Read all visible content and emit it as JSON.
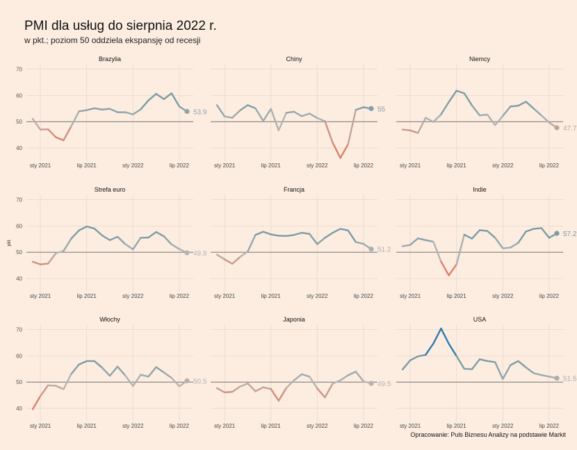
{
  "title": "PMI dla usług do sierpnia 2022 r.",
  "subtitle": "w pkt.; poziom 50 oddziela ekspansję od recesji",
  "source": "Opracowanie: Puls Biznesu Analizy na podstawie Markit",
  "chart_data": {
    "type": "line",
    "ylabel": "pkt",
    "ylim": [
      35,
      72
    ],
    "yticks": [
      40,
      50,
      60,
      70
    ],
    "xticks": [
      "sty 2021",
      "lip 2021",
      "sty 2022",
      "lip 2022"
    ],
    "x": [
      "2020-12",
      "2021-01",
      "2021-02",
      "2021-03",
      "2021-04",
      "2021-05",
      "2021-06",
      "2021-07",
      "2021-08",
      "2021-09",
      "2021-10",
      "2021-11",
      "2021-12",
      "2022-01",
      "2022-02",
      "2022-03",
      "2022-04",
      "2022-05",
      "2022-06",
      "2022-07",
      "2022-08"
    ],
    "reference_line": 50,
    "colors": {
      "expansion": "#7b9ba6",
      "recession": "#d9826a",
      "grey": "#b5b5b5",
      "strong": "#2b7bb0"
    },
    "panels": [
      {
        "name": "Brazylia",
        "last_label": "53.9",
        "values": [
          51.1,
          47.0,
          47.1,
          44.1,
          42.9,
          48.3,
          53.9,
          54.4,
          55.1,
          54.6,
          54.9,
          53.6,
          53.6,
          52.8,
          54.7,
          58.1,
          60.6,
          58.6,
          60.8,
          55.8,
          53.9
        ]
      },
      {
        "name": "Chiny",
        "last_label": "55",
        "values": [
          56.3,
          52.0,
          51.5,
          54.3,
          56.3,
          55.1,
          50.3,
          54.9,
          46.7,
          53.4,
          53.8,
          52.1,
          53.1,
          51.4,
          50.2,
          42.0,
          36.2,
          41.4,
          54.5,
          55.5,
          55.0
        ]
      },
      {
        "name": "Niemcy",
        "last_label": "47.7",
        "values": [
          47.0,
          46.7,
          45.7,
          51.5,
          49.9,
          52.8,
          57.5,
          61.8,
          60.8,
          56.2,
          52.4,
          52.7,
          48.7,
          52.2,
          55.8,
          56.1,
          57.6,
          55.0,
          52.4,
          49.7,
          47.7
        ]
      },
      {
        "name": "Strefa euro",
        "last_label": "49.8",
        "values": [
          46.4,
          45.4,
          45.7,
          49.6,
          50.5,
          55.2,
          58.3,
          59.8,
          59.0,
          56.4,
          54.6,
          55.9,
          53.1,
          51.1,
          55.5,
          55.6,
          57.7,
          56.1,
          53.0,
          51.2,
          49.8
        ]
      },
      {
        "name": "Francja",
        "last_label": "51.2",
        "values": [
          49.1,
          47.3,
          45.6,
          48.2,
          50.3,
          56.6,
          57.8,
          56.8,
          56.3,
          56.2,
          56.6,
          57.4,
          57.0,
          53.1,
          55.5,
          57.4,
          58.9,
          58.3,
          53.9,
          53.2,
          51.2
        ]
      },
      {
        "name": "Indie",
        "last_label": "57.2",
        "values": [
          52.3,
          52.8,
          55.3,
          54.6,
          54.0,
          46.4,
          41.2,
          45.4,
          56.7,
          55.2,
          58.4,
          58.1,
          55.5,
          51.5,
          51.8,
          53.6,
          57.9,
          58.9,
          59.2,
          55.5,
          57.2
        ]
      },
      {
        "name": "Włochy",
        "last_label": "50.5",
        "values": [
          39.7,
          44.7,
          48.8,
          48.6,
          47.3,
          53.1,
          56.7,
          58.0,
          58.0,
          55.5,
          52.4,
          55.9,
          52.5,
          48.5,
          52.8,
          52.1,
          55.7,
          53.7,
          51.6,
          48.4,
          50.5
        ]
      },
      {
        "name": "Japonia",
        "last_label": "49.5",
        "values": [
          47.7,
          46.1,
          46.3,
          48.3,
          49.5,
          46.5,
          48.0,
          47.4,
          42.9,
          47.8,
          50.7,
          53.0,
          52.1,
          47.6,
          44.2,
          49.4,
          50.7,
          52.6,
          54.0,
          50.3,
          49.5
        ]
      },
      {
        "name": "USA",
        "last_label": "51.5",
        "values": [
          54.8,
          58.3,
          59.8,
          60.4,
          64.7,
          70.4,
          64.6,
          59.9,
          55.1,
          54.9,
          58.7,
          58.0,
          57.6,
          51.2,
          56.5,
          58.0,
          55.6,
          53.4,
          52.7,
          52.1,
          51.5
        ]
      }
    ]
  }
}
